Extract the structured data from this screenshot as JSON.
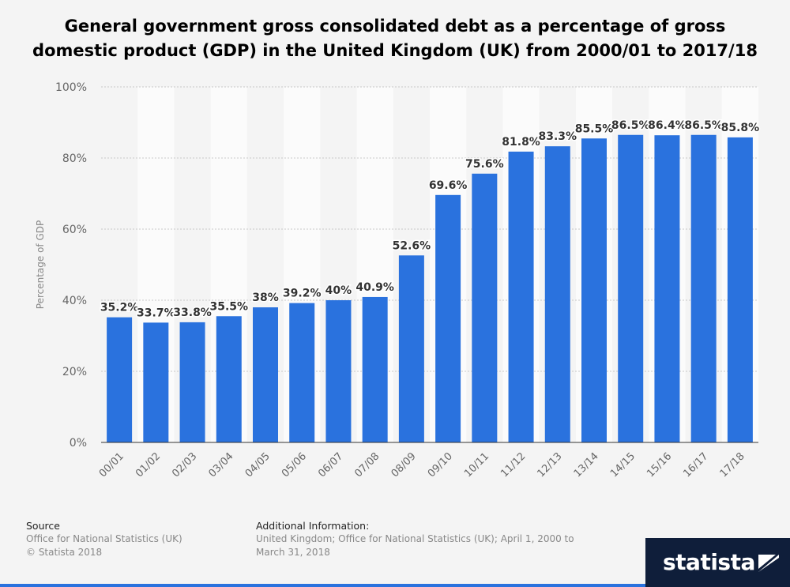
{
  "title": "General government gross consolidated debt as a percentage of gross domestic product (GDP) in the United Kingdom (UK) from 2000/01 to 2017/18",
  "chart_data": {
    "type": "bar",
    "ylabel": "Percentage of GDP",
    "ylim": [
      0,
      100
    ],
    "yticks": [
      "0%",
      "20%",
      "40%",
      "60%",
      "80%",
      "100%"
    ],
    "grid": true,
    "bar_color": "#2a72de",
    "categories": [
      "00/01",
      "01/02",
      "02/03",
      "03/04",
      "04/05",
      "05/06",
      "06/07",
      "07/08",
      "08/09",
      "09/10",
      "10/11",
      "11/12",
      "12/13",
      "13/14",
      "14/15",
      "15/16",
      "16/17",
      "17/18"
    ],
    "values": [
      35.2,
      33.7,
      33.8,
      35.5,
      38,
      39.2,
      40,
      40.9,
      52.6,
      69.6,
      75.6,
      81.8,
      83.3,
      85.5,
      86.5,
      86.4,
      86.5,
      85.8
    ],
    "labels": [
      "35.2%",
      "33.7%",
      "33.8%",
      "35.5%",
      "38%",
      "39.2%",
      "40%",
      "40.9%",
      "52.6%",
      "69.6%",
      "75.6%",
      "81.8%",
      "83.3%",
      "85.5%",
      "86.5%",
      "86.4%",
      "86.5%",
      "85.8%"
    ]
  },
  "footer": {
    "source_heading": "Source",
    "source_line1": "Office for National Statistics (UK)",
    "source_line2": "© Statista 2018",
    "info_heading": "Additional Information:",
    "info_line1": "United Kingdom; Office for National Statistics (UK); April 1, 2000 to",
    "info_line2": "March 31, 2018"
  },
  "logo": {
    "text": "statista"
  }
}
